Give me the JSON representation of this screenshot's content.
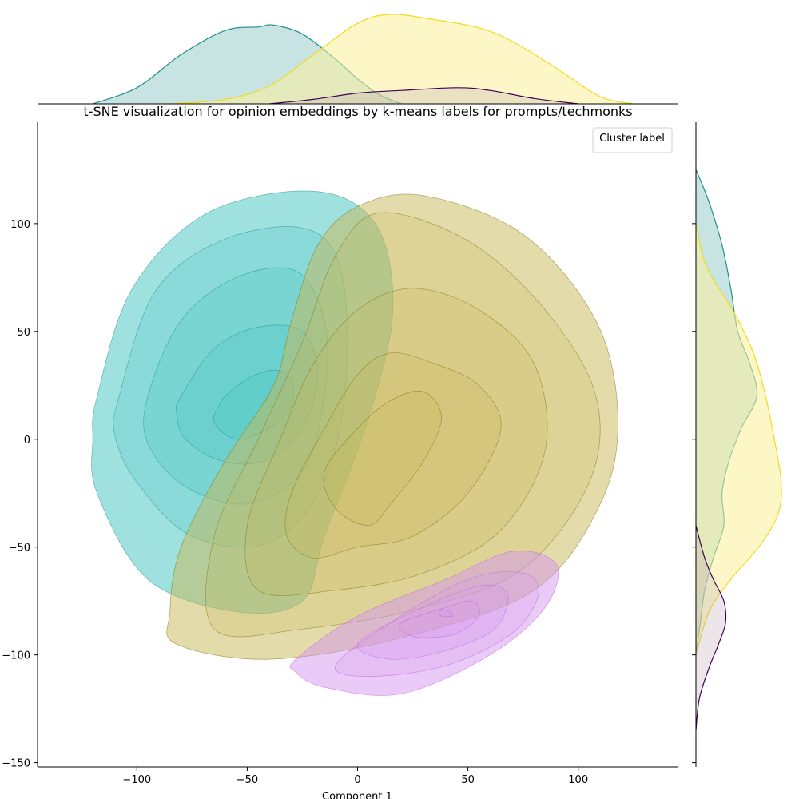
{
  "chart_data": {
    "type": "kde-contour-with-marginals",
    "title": "t-SNE visualization for opinion embeddings by k-means labels for prompts/techmonks",
    "xlabel": "Component 1",
    "ylabel": "",
    "xlim": [
      -145,
      145
    ],
    "ylim": [
      -152,
      147
    ],
    "xticks": [
      -100,
      -50,
      0,
      50,
      100
    ],
    "xtick_labels": [
      "−100",
      "−50",
      "0",
      "50",
      "100"
    ],
    "yticks": [
      100,
      50,
      0,
      -50,
      -100,
      -150
    ],
    "ytick_labels": [
      "100",
      "50",
      "0",
      "−50",
      "−100",
      "−150"
    ],
    "legend": {
      "title": "Cluster label",
      "placement": "upper-right",
      "entries": []
    },
    "grid": false,
    "series": [
      {
        "color_fill": "#3ec4c0",
        "color_line": "#21918c",
        "contours": [
          [
            [
              -60,
              20
            ],
            [
              -50,
              28
            ],
            [
              -38,
              32
            ],
            [
              -30,
              28
            ],
            [
              -30,
              15
            ],
            [
              -40,
              5
            ],
            [
              -55,
              0
            ],
            [
              -65,
              8
            ],
            [
              -62,
              17
            ]
          ],
          [
            [
              -80,
              20
            ],
            [
              -65,
              42
            ],
            [
              -45,
              52
            ],
            [
              -25,
              50
            ],
            [
              -18,
              30
            ],
            [
              -25,
              5
            ],
            [
              -42,
              -10
            ],
            [
              -62,
              -10
            ],
            [
              -78,
              0
            ],
            [
              -82,
              12
            ]
          ],
          [
            [
              -95,
              20
            ],
            [
              -80,
              55
            ],
            [
              -55,
              75
            ],
            [
              -28,
              78
            ],
            [
              -15,
              55
            ],
            [
              -15,
              20
            ],
            [
              -25,
              -15
            ],
            [
              -50,
              -30
            ],
            [
              -78,
              -22
            ],
            [
              -95,
              -2
            ]
          ],
          [
            [
              -108,
              20
            ],
            [
              -92,
              68
            ],
            [
              -62,
              92
            ],
            [
              -25,
              98
            ],
            [
              -8,
              80
            ],
            [
              -5,
              30
            ],
            [
              -15,
              -20
            ],
            [
              -40,
              -48
            ],
            [
              -75,
              -45
            ],
            [
              -100,
              -20
            ],
            [
              -110,
              2
            ]
          ],
          [
            [
              -118,
              20
            ],
            [
              -102,
              70
            ],
            [
              -68,
              105
            ],
            [
              -20,
              115
            ],
            [
              8,
              100
            ],
            [
              16,
              60
            ],
            [
              5,
              10
            ],
            [
              -15,
              -45
            ],
            [
              -25,
              -75
            ],
            [
              -55,
              -80
            ],
            [
              -95,
              -65
            ],
            [
              -118,
              -25
            ],
            [
              -120,
              0
            ]
          ]
        ]
      },
      {
        "color_fill": "#c8b755",
        "color_line": "#7a7410",
        "contours": [
          [
            [
              5,
              -40
            ],
            [
              15,
              -30
            ],
            [
              30,
              -10
            ],
            [
              38,
              10
            ],
            [
              30,
              22
            ],
            [
              15,
              18
            ],
            [
              0,
              5
            ],
            [
              -15,
              -15
            ],
            [
              -10,
              -32
            ]
          ],
          [
            [
              -20,
              -55
            ],
            [
              0,
              -50
            ],
            [
              25,
              -45
            ],
            [
              50,
              -25
            ],
            [
              65,
              5
            ],
            [
              55,
              25
            ],
            [
              35,
              35
            ],
            [
              15,
              40
            ],
            [
              0,
              30
            ],
            [
              -15,
              5
            ],
            [
              -30,
              -25
            ],
            [
              -32,
              -45
            ]
          ],
          [
            [
              -45,
              -70
            ],
            [
              -10,
              -70
            ],
            [
              30,
              -62
            ],
            [
              65,
              -42
            ],
            [
              85,
              -5
            ],
            [
              80,
              35
            ],
            [
              55,
              60
            ],
            [
              25,
              70
            ],
            [
              0,
              60
            ],
            [
              -20,
              35
            ],
            [
              -35,
              0
            ],
            [
              -50,
              -40
            ]
          ],
          [
            [
              -65,
              -88
            ],
            [
              -25,
              -88
            ],
            [
              30,
              -78
            ],
            [
              75,
              -60
            ],
            [
              105,
              -20
            ],
            [
              108,
              20
            ],
            [
              85,
              60
            ],
            [
              50,
              92
            ],
            [
              10,
              105
            ],
            [
              -10,
              85
            ],
            [
              -25,
              45
            ],
            [
              -45,
              0
            ],
            [
              -65,
              -45
            ]
          ],
          [
            [
              -82,
              -95
            ],
            [
              -40,
              -102
            ],
            [
              20,
              -92
            ],
            [
              80,
              -70
            ],
            [
              110,
              -30
            ],
            [
              118,
              10
            ],
            [
              108,
              55
            ],
            [
              75,
              95
            ],
            [
              30,
              113
            ],
            [
              0,
              108
            ],
            [
              -18,
              90
            ],
            [
              -30,
              55
            ],
            [
              -38,
              25
            ],
            [
              -60,
              -10
            ],
            [
              -80,
              -50
            ],
            [
              -85,
              -80
            ]
          ]
        ]
      },
      {
        "color_fill": "#d596ef",
        "color_line": "#c060e0",
        "contours": [
          [
            [
              37,
              -79
            ],
            [
              42,
              -80
            ],
            [
              43,
              -82
            ],
            [
              38,
              -82
            ]
          ],
          [
            [
              20,
              -85
            ],
            [
              40,
              -78
            ],
            [
              52,
              -75
            ],
            [
              55,
              -82
            ],
            [
              45,
              -90
            ],
            [
              30,
              -92
            ],
            [
              22,
              -90
            ]
          ],
          [
            [
              0,
              -95
            ],
            [
              25,
              -80
            ],
            [
              55,
              -68
            ],
            [
              68,
              -72
            ],
            [
              62,
              -88
            ],
            [
              40,
              -98
            ],
            [
              15,
              -102
            ]
          ],
          [
            [
              -10,
              -105
            ],
            [
              15,
              -85
            ],
            [
              50,
              -65
            ],
            [
              75,
              -62
            ],
            [
              82,
              -72
            ],
            [
              70,
              -90
            ],
            [
              40,
              -105
            ],
            [
              5,
              -110
            ]
          ],
          [
            [
              -28,
              -102
            ],
            [
              0,
              -82
            ],
            [
              40,
              -65
            ],
            [
              70,
              -52
            ],
            [
              90,
              -58
            ],
            [
              85,
              -78
            ],
            [
              60,
              -100
            ],
            [
              20,
              -118
            ],
            [
              -15,
              -115
            ],
            [
              -28,
              -108
            ]
          ]
        ]
      }
    ],
    "top_marginal": {
      "x_range": [
        -120,
        130
      ],
      "series": [
        {
          "color_line": "#21918c",
          "color_fill": "#21918c",
          "x": [
            -120,
            -100,
            -80,
            -60,
            -45,
            -38,
            -25,
            -10,
            0,
            10,
            20
          ],
          "density": [
            0,
            0.18,
            0.55,
            0.82,
            0.86,
            0.88,
            0.78,
            0.5,
            0.28,
            0.1,
            0
          ]
        },
        {
          "color_line": "#f0dc1c",
          "color_fill": "#fbf09a",
          "x": [
            -85,
            -60,
            -40,
            -20,
            0,
            15,
            35,
            55,
            70,
            90,
            110,
            125
          ],
          "density": [
            0,
            0.05,
            0.2,
            0.55,
            0.9,
            1.0,
            0.94,
            0.85,
            0.7,
            0.4,
            0.08,
            0
          ]
        },
        {
          "color_line": "#440154",
          "color_fill": "#b49cb0",
          "x": [
            -40,
            -20,
            0,
            20,
            45,
            60,
            80,
            100
          ],
          "density": [
            0,
            0.05,
            0.12,
            0.15,
            0.18,
            0.15,
            0.06,
            0
          ]
        }
      ]
    },
    "right_marginal": {
      "y_range": [
        -140,
        125
      ],
      "series": [
        {
          "color_line": "#21918c",
          "color_fill": "#21918c",
          "y": [
            125,
            110,
            90,
            70,
            50,
            35,
            20,
            5,
            -10,
            -25,
            -40,
            -55,
            -70,
            -85,
            -100
          ],
          "density": [
            0,
            0.15,
            0.3,
            0.4,
            0.48,
            0.62,
            0.7,
            0.52,
            0.38,
            0.3,
            0.32,
            0.2,
            0.1,
            0.05,
            0
          ]
        },
        {
          "color_line": "#f0dc1c",
          "color_fill": "#fbf09a",
          "y": [
            100,
            80,
            60,
            40,
            20,
            0,
            -20,
            -35,
            -50,
            -65,
            -80,
            -100
          ],
          "density": [
            0,
            0.12,
            0.42,
            0.66,
            0.8,
            0.9,
            0.98,
            0.94,
            0.72,
            0.4,
            0.15,
            0
          ]
        },
        {
          "color_line": "#440154",
          "color_fill": "#b49cb0",
          "y": [
            -40,
            -55,
            -65,
            -75,
            -85,
            -95,
            -105,
            -120,
            -135
          ],
          "density": [
            0,
            0.1,
            0.2,
            0.32,
            0.34,
            0.26,
            0.16,
            0.04,
            0
          ]
        }
      ]
    }
  }
}
